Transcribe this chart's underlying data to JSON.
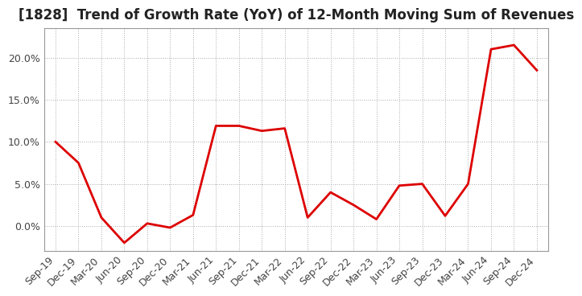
{
  "title": "[1828]  Trend of Growth Rate (YoY) of 12-Month Moving Sum of Revenues",
  "title_fontsize": 12,
  "line_color": "#DD0000",
  "line_width": 2.0,
  "background_color": "#FFFFFF",
  "plot_bg_color": "#FFFFFF",
  "grid_color": "#AAAAAA",
  "ylim": [
    -0.03,
    0.235
  ],
  "yticks": [
    0.0,
    0.05,
    0.1,
    0.15,
    0.2
  ],
  "x_labels": [
    "Sep-19",
    "Dec-19",
    "Mar-20",
    "Jun-20",
    "Sep-20",
    "Dec-20",
    "Mar-21",
    "Jun-21",
    "Sep-21",
    "Dec-21",
    "Mar-22",
    "Jun-22",
    "Sep-22",
    "Dec-22",
    "Mar-23",
    "Jun-23",
    "Sep-23",
    "Dec-23",
    "Mar-24",
    "Jun-24",
    "Sep-24",
    "Dec-24"
  ],
  "values": [
    0.1,
    0.075,
    0.01,
    -0.02,
    0.003,
    -0.002,
    0.013,
    0.119,
    0.119,
    0.113,
    0.116,
    0.01,
    0.04,
    0.025,
    0.008,
    0.048,
    0.05,
    0.012,
    0.05,
    0.21,
    0.215,
    0.185
  ]
}
